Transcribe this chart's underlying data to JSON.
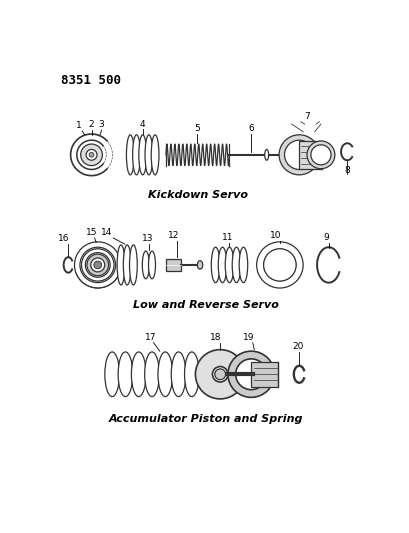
{
  "background_color": "#ffffff",
  "part_number": "8351 500",
  "section1_label": "Kickdown Servo",
  "section2_label": "Low and Reverse Servo",
  "section3_label": "Accumulator Piston and Spring",
  "line_color": "#333333",
  "font_size_label": 8,
  "font_size_part": 6.5,
  "font_size_header": 9
}
